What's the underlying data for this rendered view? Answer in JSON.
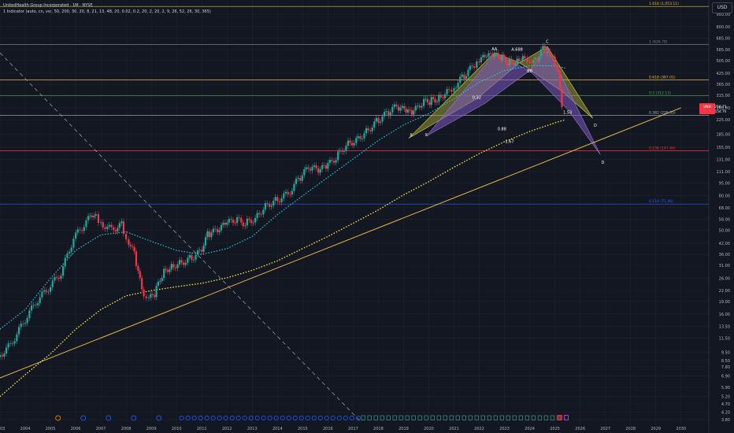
{
  "header": {
    "title": "UnitedHealth Group Incorporated · 1M · NYSE",
    "indicator": "1 Indicator (auto, cn, vsr, 50, 200, 30, 20, 8, 21, 13, 48, 20, 0.02, 0.2, 20, 2, 20, 2, 9, 26, 52, 26, 30, 365)",
    "currency": "USD"
  },
  "price_badge": {
    "symbol": "UNH",
    "price": "258.71",
    "countdown": "15d 7h",
    "color": "#f23645"
  },
  "colors": {
    "background": "#131722",
    "up": "#26a69a",
    "down": "#f23645",
    "grid": "#1e222d",
    "axis_text": "#b2b5be",
    "trendline": "#e8b84a",
    "ema_teal": "#26c6da",
    "sma_yellow": "#ffeb3b"
  },
  "chart_data": {
    "type": "candlestick",
    "scale": "log",
    "x_ticks": [
      "2003",
      "2004",
      "2005",
      "2006",
      "2007",
      "2008",
      "2009",
      "2010",
      "2011",
      "2012",
      "2013",
      "2014",
      "2015",
      "2016",
      "2017",
      "2018",
      "2019",
      "2020",
      "2021",
      "2022",
      "2023",
      "2024",
      "2025",
      "2026",
      "2027",
      "2028",
      "2029",
      "2030"
    ],
    "y_ticks": [
      3.8,
      4.2,
      4.7,
      5.2,
      5.9,
      6.9,
      7.8,
      8.5,
      9.5,
      11.5,
      13.5,
      16.0,
      19.0,
      22.0,
      26.0,
      31.0,
      36.0,
      42.0,
      50.0,
      58.0,
      68.0,
      80.0,
      95.0,
      111.0,
      131.0,
      155.0,
      185.0,
      225.0,
      265.0,
      315.0,
      365.0,
      425.0,
      505.0,
      585.0,
      685.0,
      800.0,
      950.0
    ],
    "ylim": [
      3.6,
      1150
    ],
    "fib_levels": [
      {
        "label": "1.618 (1,053.11)",
        "value": 1053.11,
        "color": "#e8b84a"
      },
      {
        "label": "1 (626.78)",
        "value": 626.78,
        "color": "#787b86"
      },
      {
        "label": "0.618 (387.01)",
        "value": 387.01,
        "color": "#e8b84a"
      },
      {
        "label": "0.5 (312.13)",
        "value": 312.13,
        "color": "#4caf50"
      },
      {
        "label": "0.382 (239.35)",
        "value": 239.35,
        "color": "#b2b5be"
      },
      {
        "label": "0.236 (147.84)",
        "value": 147.84,
        "color": "#f23645"
      },
      {
        "label": "0.114 (71.46)",
        "value": 71.46,
        "color": "#2962ff"
      }
    ],
    "pattern_labels": [
      {
        "text": "X",
        "x": 2019.3,
        "y": 180
      },
      {
        "text": "X",
        "x": 2019.9,
        "y": 180
      },
      {
        "text": "AA",
        "x": 2022.6,
        "y": 580
      },
      {
        "text": "A.688",
        "x": 2023.5,
        "y": 575
      },
      {
        "text": "C",
        "x": 2024.7,
        "y": 640
      },
      {
        "text": "BB",
        "x": 2024.0,
        "y": 430
      },
      {
        "text": "0.32",
        "x": 2021.9,
        "y": 300
      },
      {
        "text": "0.88",
        "x": 2022.9,
        "y": 195
      },
      {
        "text": "1.53",
        "x": 2025.5,
        "y": 245
      },
      {
        "text": "1.67",
        "x": 2023.2,
        "y": 164
      },
      {
        "text": "D",
        "x": 2026.6,
        "y": 205
      },
      {
        "text": "D",
        "x": 2026.9,
        "y": 124
      }
    ],
    "candles": [
      [
        2003.0,
        8.9
      ],
      [
        2003.5,
        10.5
      ],
      [
        2004.0,
        14.2
      ],
      [
        2004.5,
        18.8
      ],
      [
        2005.0,
        22.8
      ],
      [
        2005.5,
        28.0
      ],
      [
        2006.0,
        45.0
      ],
      [
        2006.5,
        56.0
      ],
      [
        2006.8,
        64.0
      ],
      [
        2007.0,
        56.0
      ],
      [
        2007.5,
        50.5
      ],
      [
        2007.9,
        54.0
      ],
      [
        2008.1,
        46.0
      ],
      [
        2008.4,
        36.0
      ],
      [
        2008.7,
        22.0
      ],
      [
        2008.9,
        19.0
      ],
      [
        2009.2,
        21.0
      ],
      [
        2009.5,
        27.5
      ],
      [
        2009.8,
        30.5
      ],
      [
        2010.2,
        32.0
      ],
      [
        2010.6,
        34.0
      ],
      [
        2011.0,
        37.0
      ],
      [
        2011.3,
        47.0
      ],
      [
        2011.7,
        50.0
      ],
      [
        2012.0,
        54.0
      ],
      [
        2012.4,
        58.0
      ],
      [
        2012.8,
        55.0
      ],
      [
        2013.2,
        59.0
      ],
      [
        2013.6,
        70.0
      ],
      [
        2014.0,
        75.0
      ],
      [
        2014.5,
        82.0
      ],
      [
        2014.9,
        100.0
      ],
      [
        2015.3,
        117.0
      ],
      [
        2015.7,
        114.0
      ],
      [
        2016.0,
        118.0
      ],
      [
        2016.4,
        135.0
      ],
      [
        2016.8,
        160.0
      ],
      [
        2017.2,
        172.0
      ],
      [
        2017.6,
        192.0
      ],
      [
        2018.0,
        220.0
      ],
      [
        2018.4,
        245.0
      ],
      [
        2018.8,
        270.0
      ],
      [
        2019.1,
        255.0
      ],
      [
        2019.4,
        243.0
      ],
      [
        2019.8,
        285.0
      ],
      [
        2020.1,
        290.0
      ],
      [
        2020.4,
        300.0
      ],
      [
        2020.8,
        330.0
      ],
      [
        2021.0,
        345.0
      ],
      [
        2021.4,
        400.0
      ],
      [
        2021.8,
        460.0
      ],
      [
        2022.0,
        500.0
      ],
      [
        2022.3,
        525.0
      ],
      [
        2022.6,
        540.0
      ],
      [
        2022.9,
        530.0
      ],
      [
        2023.2,
        495.0
      ],
      [
        2023.5,
        500.0
      ],
      [
        2023.8,
        535.0
      ],
      [
        2024.0,
        520.0
      ],
      [
        2024.3,
        500.0
      ],
      [
        2024.6,
        590.0
      ],
      [
        2024.8,
        565.0
      ],
      [
        2025.0,
        510.0
      ],
      [
        2025.2,
        420.0
      ],
      [
        2025.35,
        258.7
      ]
    ],
    "ema_teal": [
      [
        2003.0,
        13
      ],
      [
        2004.0,
        17
      ],
      [
        2005.0,
        26
      ],
      [
        2006.0,
        38
      ],
      [
        2007.0,
        47
      ],
      [
        2008.0,
        49
      ],
      [
        2009.0,
        43
      ],
      [
        2010.0,
        38
      ],
      [
        2011.0,
        36
      ],
      [
        2012.0,
        39
      ],
      [
        2013.0,
        46
      ],
      [
        2014.0,
        62
      ],
      [
        2015.0,
        80
      ],
      [
        2016.0,
        103
      ],
      [
        2017.0,
        132
      ],
      [
        2018.0,
        170
      ],
      [
        2019.0,
        210
      ],
      [
        2020.0,
        245
      ],
      [
        2021.0,
        300
      ],
      [
        2022.0,
        375
      ],
      [
        2023.0,
        440
      ],
      [
        2024.0,
        470
      ],
      [
        2025.0,
        470
      ],
      [
        2025.4,
        455
      ]
    ],
    "sma_yellow": [
      [
        2003.0,
        5.2
      ],
      [
        2004.0,
        7.0
      ],
      [
        2005.0,
        9.3
      ],
      [
        2006.0,
        13
      ],
      [
        2007.0,
        17
      ],
      [
        2008.0,
        20.5
      ],
      [
        2009.0,
        22
      ],
      [
        2010.0,
        23.2
      ],
      [
        2011.0,
        24.3
      ],
      [
        2012.0,
        26.2
      ],
      [
        2013.0,
        29
      ],
      [
        2014.0,
        33
      ],
      [
        2015.0,
        39
      ],
      [
        2016.0,
        46
      ],
      [
        2017.0,
        55
      ],
      [
        2018.0,
        66
      ],
      [
        2019.0,
        81
      ],
      [
        2020.0,
        97
      ],
      [
        2021.0,
        118
      ],
      [
        2022.0,
        142
      ],
      [
        2023.0,
        167
      ],
      [
        2024.0,
        192
      ],
      [
        2025.0,
        216
      ],
      [
        2025.4,
        225
      ]
    ],
    "trendline": [
      [
        2003.0,
        6.7
      ],
      [
        2030.0,
        265.0
      ]
    ],
    "dashed_line": [
      [
        2003.0,
        560
      ],
      [
        2017.3,
        3.7
      ]
    ]
  }
}
